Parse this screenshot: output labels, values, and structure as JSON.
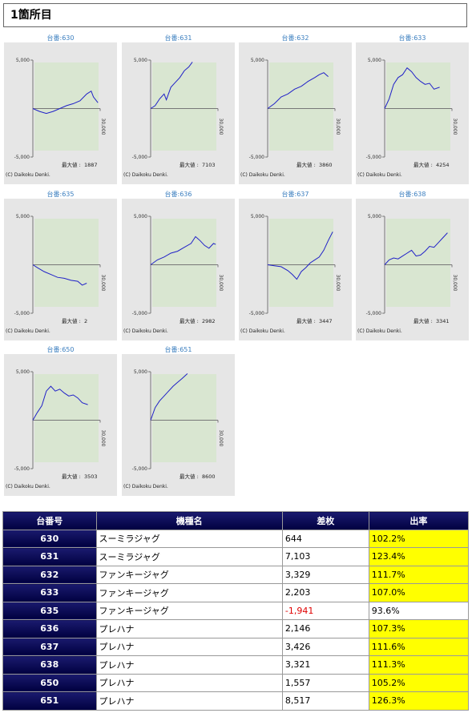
{
  "header": {
    "title": "1箇所目"
  },
  "chart_data": [
    {
      "type": "line",
      "title": "台番:630",
      "x": [
        0,
        3000,
        6000,
        9000,
        12000,
        15000,
        18000,
        21000,
        24000,
        26000,
        27000,
        29000
      ],
      "values": [
        0,
        -300,
        -500,
        -300,
        0,
        300,
        500,
        800,
        1500,
        1800,
        1200,
        600
      ],
      "xlim": [
        0,
        30000
      ],
      "xticks": [
        {
          "value": 30000,
          "label": "30,000"
        }
      ],
      "ylim": [
        -5000,
        5000
      ],
      "yticks": [
        {
          "value": 5000,
          "label": "5,000"
        },
        {
          "value": -5000,
          "label": "-5,000"
        }
      ],
      "max_label": "最大値 :",
      "max_value": "1887",
      "copyright": "(C) Daikoku Denki."
    },
    {
      "type": "line",
      "title": "台番:631",
      "x": [
        0,
        2000,
        4000,
        6000,
        7000,
        9000,
        11000,
        13000,
        15000,
        17000,
        18600
      ],
      "values": [
        0,
        300,
        1000,
        1500,
        900,
        2200,
        2700,
        3200,
        3900,
        4300,
        4800
      ],
      "xlim": [
        0,
        30000
      ],
      "xticks": [
        {
          "value": 30000,
          "label": "30,000"
        }
      ],
      "ylim": [
        -5000,
        5000
      ],
      "yticks": [
        {
          "value": 5000,
          "label": "5,000"
        },
        {
          "value": -5000,
          "label": "-5,000"
        }
      ],
      "max_label": "最大値 :",
      "max_value": "7103",
      "copyright": "(C) Daikoku Denki."
    },
    {
      "type": "line",
      "title": "台番:632",
      "x": [
        0,
        3000,
        6000,
        9000,
        12000,
        15000,
        18000,
        21000,
        23000,
        25000,
        27000
      ],
      "values": [
        0,
        500,
        1200,
        1500,
        2000,
        2300,
        2800,
        3200,
        3500,
        3700,
        3300
      ],
      "xlim": [
        0,
        30000
      ],
      "xticks": [
        {
          "value": 30000,
          "label": "30,000"
        }
      ],
      "ylim": [
        -5000,
        5000
      ],
      "yticks": [
        {
          "value": 5000,
          "label": "5,000"
        },
        {
          "value": -5000,
          "label": "-5,000"
        }
      ],
      "max_label": "最大値 :",
      "max_value": "3860",
      "copyright": "(C) Daikoku Denki."
    },
    {
      "type": "line",
      "title": "台番:633",
      "x": [
        0,
        2000,
        4000,
        6000,
        8000,
        10000,
        12000,
        14000,
        16000,
        18000,
        20000,
        22000,
        24500
      ],
      "values": [
        0,
        1000,
        2500,
        3200,
        3500,
        4200,
        3800,
        3200,
        2800,
        2500,
        2600,
        2000,
        2200
      ],
      "xlim": [
        0,
        30000
      ],
      "xticks": [
        {
          "value": 30000,
          "label": "30,000"
        }
      ],
      "ylim": [
        -5000,
        5000
      ],
      "yticks": [
        {
          "value": 5000,
          "label": "5,000"
        },
        {
          "value": -5000,
          "label": "-5,000"
        }
      ],
      "max_label": "最大値 :",
      "max_value": "4254",
      "copyright": "(C) Daikoku Denki."
    },
    {
      "type": "line",
      "title": "台番:635",
      "x": [
        0,
        2000,
        5000,
        8000,
        11000,
        14000,
        17000,
        20000,
        22000,
        24000
      ],
      "values": [
        0,
        -300,
        -700,
        -1000,
        -1300,
        -1400,
        -1600,
        -1700,
        -2100,
        -1900
      ],
      "xlim": [
        0,
        30000
      ],
      "xticks": [
        {
          "value": 30000,
          "label": "30,000"
        }
      ],
      "ylim": [
        -5000,
        5000
      ],
      "yticks": [
        {
          "value": 5000,
          "label": "5,000"
        },
        {
          "value": -5000,
          "label": "-5,000"
        }
      ],
      "max_label": "最大値 :",
      "max_value": "2",
      "copyright": "(C) Daikoku Denki."
    },
    {
      "type": "line",
      "title": "台番:636",
      "x": [
        0,
        3000,
        6000,
        9000,
        12000,
        15000,
        18000,
        20000,
        22000,
        24000,
        26000,
        28000,
        29000
      ],
      "values": [
        0,
        500,
        800,
        1200,
        1400,
        1800,
        2200,
        2900,
        2500,
        2000,
        1700,
        2200,
        2100
      ],
      "xlim": [
        0,
        30000
      ],
      "xticks": [
        {
          "value": 30000,
          "label": "30,000"
        }
      ],
      "ylim": [
        -5000,
        5000
      ],
      "yticks": [
        {
          "value": 5000,
          "label": "5,000"
        },
        {
          "value": -5000,
          "label": "-5,000"
        }
      ],
      "max_label": "最大値 :",
      "max_value": "2982",
      "copyright": "(C) Daikoku Denki."
    },
    {
      "type": "line",
      "title": "台番:637",
      "x": [
        0,
        3000,
        6000,
        9000,
        11000,
        13000,
        15000,
        17000,
        19000,
        21000,
        23000,
        25000,
        27000,
        29000
      ],
      "values": [
        0,
        -100,
        -200,
        -600,
        -1000,
        -1500,
        -700,
        -300,
        200,
        500,
        800,
        1500,
        2500,
        3400
      ],
      "xlim": [
        0,
        30000
      ],
      "xticks": [
        {
          "value": 30000,
          "label": "30,000"
        }
      ],
      "ylim": [
        -5000,
        5000
      ],
      "yticks": [
        {
          "value": 5000,
          "label": "5,000"
        },
        {
          "value": -5000,
          "label": "-5,000"
        }
      ],
      "max_label": "最大値 :",
      "max_value": "3447",
      "copyright": "(C) Daikoku Denki."
    },
    {
      "type": "line",
      "title": "台番:638",
      "x": [
        0,
        2000,
        4000,
        6000,
        8000,
        10000,
        12000,
        14000,
        16000,
        18000,
        20000,
        22000,
        24000,
        26000,
        28000
      ],
      "values": [
        0,
        500,
        700,
        600,
        900,
        1200,
        1500,
        900,
        1000,
        1400,
        1900,
        1800,
        2300,
        2800,
        3300
      ],
      "xlim": [
        0,
        30000
      ],
      "xticks": [
        {
          "value": 30000,
          "label": "30,000"
        }
      ],
      "ylim": [
        -5000,
        5000
      ],
      "yticks": [
        {
          "value": 5000,
          "label": "5,000"
        },
        {
          "value": -5000,
          "label": "-5,000"
        }
      ],
      "max_label": "最大値 :",
      "max_value": "3341",
      "copyright": "(C) Daikoku Denki."
    },
    {
      "type": "line",
      "title": "台番:650",
      "x": [
        0,
        2000,
        4000,
        6000,
        8000,
        10000,
        12000,
        14000,
        16000,
        18000,
        20000,
        22000,
        24500
      ],
      "values": [
        0,
        800,
        1500,
        3000,
        3500,
        3000,
        3200,
        2800,
        2500,
        2600,
        2300,
        1800,
        1600
      ],
      "xlim": [
        0,
        30000
      ],
      "xticks": [
        {
          "value": 30000,
          "label": "30,000"
        }
      ],
      "ylim": [
        -5000,
        5000
      ],
      "yticks": [
        {
          "value": 5000,
          "label": "5,000"
        },
        {
          "value": -5000,
          "label": "-5,000"
        }
      ],
      "max_label": "最大値 :",
      "max_value": "3503",
      "copyright": "(C) Daikoku Denki."
    },
    {
      "type": "line",
      "title": "台番:651",
      "x": [
        0,
        2000,
        4000,
        6000,
        8000,
        10000,
        12000,
        14000,
        16400
      ],
      "values": [
        0,
        1300,
        2000,
        2500,
        3000,
        3500,
        3900,
        4300,
        4800
      ],
      "xlim": [
        0,
        30000
      ],
      "xticks": [
        {
          "value": 30000,
          "label": "30,000"
        }
      ],
      "ylim": [
        -5000,
        5000
      ],
      "yticks": [
        {
          "value": 5000,
          "label": "5,000"
        },
        {
          "value": -5000,
          "label": "-5,000"
        }
      ],
      "max_label": "最大値 :",
      "max_value": "8600",
      "copyright": "(C) Daikoku Denki."
    }
  ],
  "table": {
    "headers": [
      "台番号",
      "機種名",
      "差枚",
      "出率"
    ],
    "rows": [
      [
        "630",
        "スーミラジャグ",
        "644",
        "102.2%"
      ],
      [
        "631",
        "スーミラジャグ",
        "7,103",
        "123.4%"
      ],
      [
        "632",
        "ファンキージャグ",
        "3,329",
        "111.7%"
      ],
      [
        "633",
        "ファンキージャグ",
        "2,203",
        "107.0%"
      ],
      [
        "635",
        "ファンキージャグ",
        "-1,941",
        "93.6%"
      ],
      [
        "636",
        "プレハナ",
        "2,146",
        "107.3%"
      ],
      [
        "637",
        "プレハナ",
        "3,426",
        "111.6%"
      ],
      [
        "638",
        "プレハナ",
        "3,321",
        "111.3%"
      ],
      [
        "650",
        "プレハナ",
        "1,557",
        "105.2%"
      ],
      [
        "651",
        "プレハナ",
        "8,517",
        "126.3%"
      ]
    ]
  }
}
